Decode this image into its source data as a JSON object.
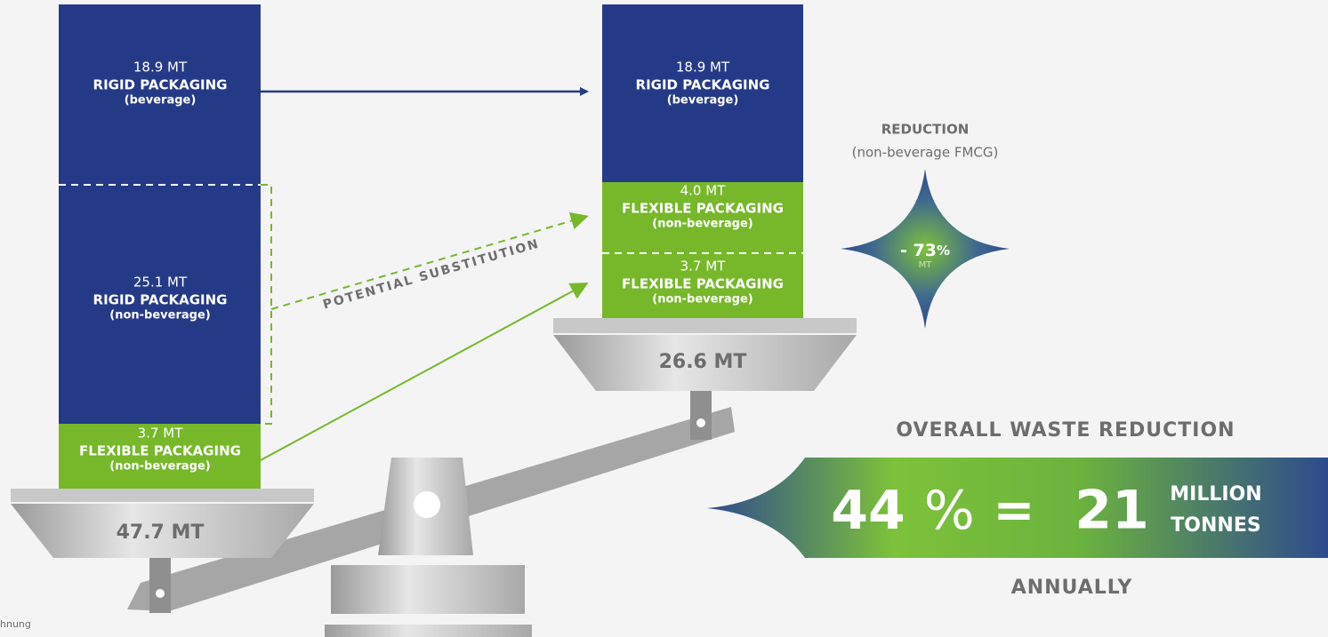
{
  "left": {
    "blocks": [
      {
        "amount": "18.9 MT",
        "label": "RIGID PACKAGING",
        "sub": "(beverage)"
      },
      {
        "amount": "25.1 MT",
        "label": "RIGID PACKAGING",
        "sub": "(non-beverage)"
      },
      {
        "amount": "3.7 MT",
        "label": "FLEXIBLE PACKAGING",
        "sub": "(non-beverage)"
      }
    ],
    "total": "47.7 MT"
  },
  "right": {
    "blocks": [
      {
        "amount": "18.9 MT",
        "label": "RIGID PACKAGING",
        "sub": "(beverage)"
      },
      {
        "amount": "4.0 MT",
        "label": "FLEXIBLE PACKAGING",
        "sub": "(non-beverage)"
      },
      {
        "amount": "3.7 MT",
        "label": "FLEXIBLE PACKAGING",
        "sub": "(non-beverage)"
      }
    ],
    "total": "26.6 MT"
  },
  "substitution": "POTENTIAL SUBSTITUTION",
  "reduction": {
    "title": "REDUCTION",
    "sub": "(non-beverage FMCG)",
    "value": "- 73",
    "unit": "%",
    "unit_small": "MT"
  },
  "overall": {
    "title": "OVERALL WASTE REDUCTION",
    "percent": "44",
    "percent_sign": "%",
    "equals": "=",
    "amount": "21",
    "unit_top": "MILLION",
    "unit_bottom": "TONNES",
    "footer": "ANNUALLY"
  },
  "source": "hnung"
}
